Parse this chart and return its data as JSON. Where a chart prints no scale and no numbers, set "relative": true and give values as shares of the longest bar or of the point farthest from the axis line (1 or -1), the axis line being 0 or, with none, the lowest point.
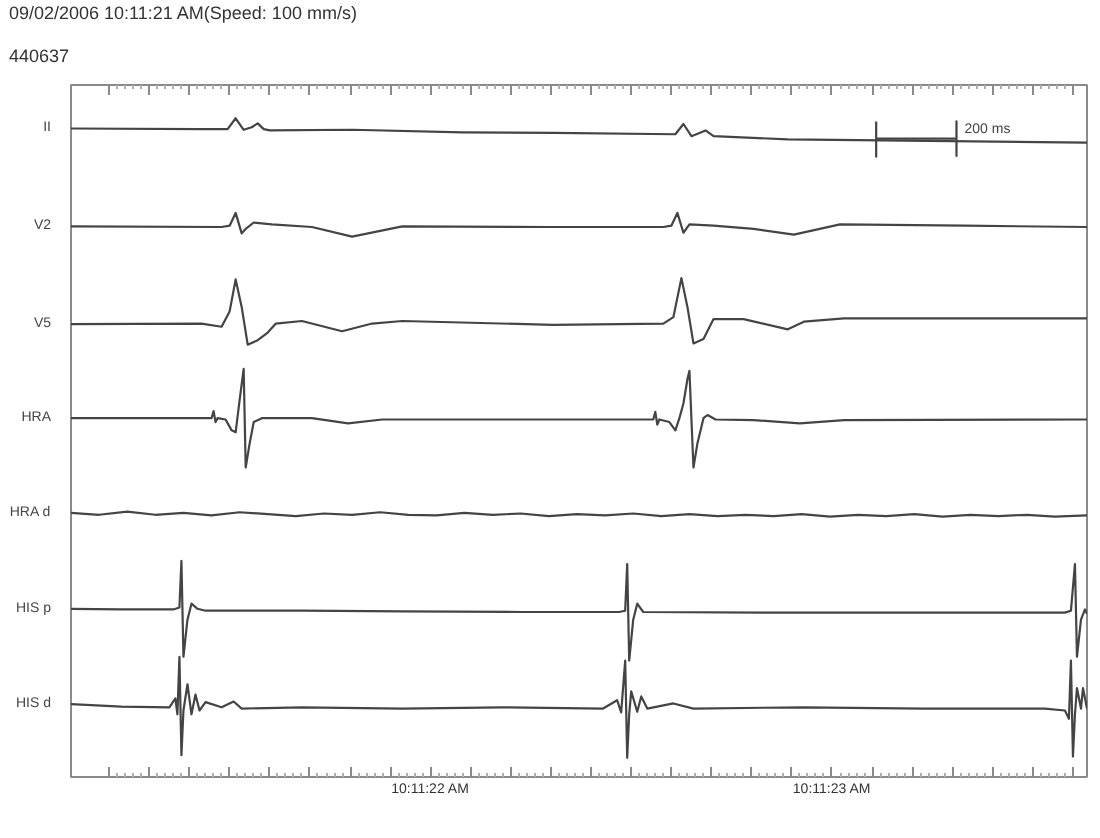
{
  "chart_data": {
    "type": "line",
    "title": "09/02/2006 10:11:21 AM(Speed: 100 mm/s)",
    "subtitle": "440637",
    "relative": true,
    "xlim": [
      "2006-09-02T10:11:21.105",
      "2006-09-02T10:11:23.635"
    ],
    "xticks": [
      {
        "value": "2006-09-02T10:11:21.200",
        "label": null
      },
      {
        "value": "2006-09-02T10:11:21.300",
        "label": null
      },
      {
        "value": "2006-09-02T10:11:21.400",
        "label": null
      },
      {
        "value": "2006-09-02T10:11:21.500",
        "label": null
      },
      {
        "value": "2006-09-02T10:11:21.600",
        "label": null
      },
      {
        "value": "2006-09-02T10:11:21.700",
        "label": null
      },
      {
        "value": "2006-09-02T10:11:21.800",
        "label": null
      },
      {
        "value": "2006-09-02T10:11:21.900",
        "label": null
      },
      {
        "value": "2006-09-02T10:11:22.000",
        "label": "10:11:22 AM"
      },
      {
        "value": "2006-09-02T10:11:22.100",
        "label": null
      },
      {
        "value": "2006-09-02T10:11:22.200",
        "label": null
      },
      {
        "value": "2006-09-02T10:11:22.300",
        "label": null
      },
      {
        "value": "2006-09-02T10:11:22.400",
        "label": null
      },
      {
        "value": "2006-09-02T10:11:22.500",
        "label": null
      },
      {
        "value": "2006-09-02T10:11:22.600",
        "label": null
      },
      {
        "value": "2006-09-02T10:11:22.700",
        "label": null
      },
      {
        "value": "2006-09-02T10:11:22.800",
        "label": null
      },
      {
        "value": "2006-09-02T10:11:22.900",
        "label": null
      },
      {
        "value": "2006-09-02T10:11:23.000",
        "label": "10:11:23 AM"
      },
      {
        "value": "2006-09-02T10:11:23.100",
        "label": null
      },
      {
        "value": "2006-09-02T10:11:23.200",
        "label": null
      },
      {
        "value": "2006-09-02T10:11:23.300",
        "label": null
      },
      {
        "value": "2006-09-02T10:11:23.400",
        "label": null
      },
      {
        "value": "2006-09-02T10:11:23.500",
        "label": null
      },
      {
        "value": "2006-09-02T10:11:23.600",
        "label": null
      }
    ],
    "series": [
      {
        "name": "II",
        "color": "#444444",
        "x": [
          "2006-09-02T10:11:21.105",
          "2006-09-02T10:11:21.430",
          "2006-09-02T10:11:21.495",
          "2006-09-02T10:11:21.515",
          "2006-09-02T10:11:21.535",
          "2006-09-02T10:11:21.555",
          "2006-09-02T10:11:21.570",
          "2006-09-02T10:11:21.585",
          "2006-09-02T10:11:21.600",
          "2006-09-02T10:11:21.805",
          "2006-09-02T10:11:22.080",
          "2006-09-02T10:11:22.305",
          "2006-09-02T10:11:22.610",
          "2006-09-02T10:11:22.630",
          "2006-09-02T10:11:22.650",
          "2006-09-02T10:11:22.670",
          "2006-09-02T10:11:22.685",
          "2006-09-02T10:11:22.705",
          "2006-09-02T10:11:22.890",
          "2006-09-02T10:11:23.180",
          "2006-09-02T10:11:23.635"
        ],
        "values": [
          0.984,
          0.983,
          0.983,
          1.0,
          0.982,
          0.986,
          0.992,
          0.983,
          0.981,
          0.982,
          0.978,
          0.977,
          0.975,
          0.991,
          0.972,
          0.977,
          0.981,
          0.972,
          0.967,
          0.965,
          0.962
        ]
      },
      {
        "name": "V2",
        "color": "#444444",
        "x": [
          "2006-09-02T10:11:21.105",
          "2006-09-02T10:11:21.480",
          "2006-09-02T10:11:21.500",
          "2006-09-02T10:11:21.515",
          "2006-09-02T10:11:21.530",
          "2006-09-02T10:11:21.540",
          "2006-09-02T10:11:21.560",
          "2006-09-02T10:11:21.605",
          "2006-09-02T10:11:21.705",
          "2006-09-02T10:11:21.805",
          "2006-09-02T10:11:21.930",
          "2006-09-02T10:11:22.305",
          "2006-09-02T10:11:22.580",
          "2006-09-02T10:11:22.600",
          "2006-09-02T10:11:22.615",
          "2006-09-02T10:11:22.630",
          "2006-09-02T10:11:22.645",
          "2006-09-02T10:11:22.705",
          "2006-09-02T10:11:22.805",
          "2006-09-02T10:11:22.905",
          "2006-09-02T10:11:23.020",
          "2006-09-02T10:11:23.330",
          "2006-09-02T10:11:23.635"
        ],
        "values": [
          0.831,
          0.83,
          0.832,
          0.852,
          0.82,
          0.827,
          0.837,
          0.834,
          0.83,
          0.815,
          0.831,
          0.83,
          0.83,
          0.832,
          0.852,
          0.821,
          0.834,
          0.832,
          0.827,
          0.818,
          0.834,
          0.832,
          0.83
        ]
      },
      {
        "name": "V5",
        "color": "#444444",
        "x": [
          "2006-09-02T10:11:21.105",
          "2006-09-02T10:11:21.430",
          "2006-09-02T10:11:21.480",
          "2006-09-02T10:11:21.500",
          "2006-09-02T10:11:21.515",
          "2006-09-02T10:11:21.530",
          "2006-09-02T10:11:21.545",
          "2006-09-02T10:11:21.570",
          "2006-09-02T10:11:21.595",
          "2006-09-02T10:11:21.615",
          "2006-09-02T10:11:21.680",
          "2006-09-02T10:11:21.780",
          "2006-09-02T10:11:21.855",
          "2006-09-02T10:11:21.930",
          "2006-09-02T10:11:22.305",
          "2006-09-02T10:11:22.580",
          "2006-09-02T10:11:22.605",
          "2006-09-02T10:11:22.625",
          "2006-09-02T10:11:22.640",
          "2006-09-02T10:11:22.655",
          "2006-09-02T10:11:22.680",
          "2006-09-02T10:11:22.705",
          "2006-09-02T10:11:22.780",
          "2006-09-02T10:11:22.890",
          "2006-09-02T10:11:22.930",
          "2006-09-02T10:11:23.030",
          "2006-09-02T10:11:23.635"
        ],
        "values": [
          0.678,
          0.679,
          0.674,
          0.698,
          0.748,
          0.705,
          0.646,
          0.653,
          0.665,
          0.679,
          0.683,
          0.667,
          0.679,
          0.683,
          0.677,
          0.679,
          0.689,
          0.75,
          0.705,
          0.648,
          0.655,
          0.686,
          0.686,
          0.67,
          0.682,
          0.687,
          0.687
        ]
      },
      {
        "name": "HRA",
        "color": "#444444",
        "x": [
          "2006-09-02T10:11:21.105",
          "2006-09-02T10:11:21.455",
          "2006-09-02T10:11:21.460",
          "2006-09-02T10:11:21.465",
          "2006-09-02T10:11:21.470",
          "2006-09-02T10:11:21.490",
          "2006-09-02T10:11:21.505",
          "2006-09-02T10:11:21.515",
          "2006-09-02T10:11:21.525",
          "2006-09-02T10:11:21.535",
          "2006-09-02T10:11:21.540",
          "2006-09-02T10:11:21.550",
          "2006-09-02T10:11:21.560",
          "2006-09-02T10:11:21.580",
          "2006-09-02T10:11:21.705",
          "2006-09-02T10:11:21.795",
          "2006-09-02T10:11:21.880",
          "2006-09-02T10:11:22.305",
          "2006-09-02T10:11:22.555",
          "2006-09-02T10:11:22.560",
          "2006-09-02T10:11:22.565",
          "2006-09-02T10:11:22.570",
          "2006-09-02T10:11:22.595",
          "2006-09-02T10:11:22.610",
          "2006-09-02T10:11:22.620",
          "2006-09-02T10:11:22.630",
          "2006-09-02T10:11:22.640",
          "2006-09-02T10:11:22.645",
          "2006-09-02T10:11:22.655",
          "2006-09-02T10:11:22.665",
          "2006-09-02T10:11:22.680",
          "2006-09-02T10:11:22.690",
          "2006-09-02T10:11:22.710",
          "2006-09-02T10:11:22.805",
          "2006-09-02T10:11:22.920",
          "2006-09-02T10:11:23.030",
          "2006-09-02T10:11:23.635"
        ],
        "values": [
          0.531,
          0.531,
          0.542,
          0.525,
          0.531,
          0.529,
          0.512,
          0.509,
          0.56,
          0.608,
          0.454,
          0.492,
          0.525,
          0.531,
          0.531,
          0.523,
          0.529,
          0.529,
          0.529,
          0.541,
          0.521,
          0.529,
          0.525,
          0.512,
          0.531,
          0.554,
          0.592,
          0.605,
          0.454,
          0.492,
          0.531,
          0.536,
          0.529,
          0.528,
          0.523,
          0.528,
          0.529
        ]
      },
      {
        "name": "HRA d",
        "color": "#444444",
        "x": [
          "2006-09-02T10:11:21.105",
          "2006-09-02T10:11:21.175",
          "2006-09-02T10:11:21.245",
          "2006-09-02T10:11:21.315",
          "2006-09-02T10:11:21.385",
          "2006-09-02T10:11:21.455",
          "2006-09-02T10:11:21.525",
          "2006-09-02T10:11:21.595",
          "2006-09-02T10:11:21.665",
          "2006-09-02T10:11:21.735",
          "2006-09-02T10:11:21.805",
          "2006-09-02T10:11:21.875",
          "2006-09-02T10:11:21.945",
          "2006-09-02T10:11:22.015",
          "2006-09-02T10:11:22.085",
          "2006-09-02T10:11:22.155",
          "2006-09-02T10:11:22.225",
          "2006-09-02T10:11:22.295",
          "2006-09-02T10:11:22.365",
          "2006-09-02T10:11:22.435",
          "2006-09-02T10:11:22.505",
          "2006-09-02T10:11:22.575",
          "2006-09-02T10:11:22.645",
          "2006-09-02T10:11:22.715",
          "2006-09-02T10:11:22.785",
          "2006-09-02T10:11:22.855",
          "2006-09-02T10:11:22.925",
          "2006-09-02T10:11:22.995",
          "2006-09-02T10:11:23.065",
          "2006-09-02T10:11:23.135",
          "2006-09-02T10:11:23.205",
          "2006-09-02T10:11:23.275",
          "2006-09-02T10:11:23.345",
          "2006-09-02T10:11:23.415",
          "2006-09-02T10:11:23.485",
          "2006-09-02T10:11:23.555",
          "2006-09-02T10:11:23.635"
        ],
        "values": [
          0.383,
          0.38,
          0.385,
          0.38,
          0.383,
          0.379,
          0.384,
          0.381,
          0.378,
          0.382,
          0.38,
          0.384,
          0.38,
          0.379,
          0.383,
          0.38,
          0.382,
          0.378,
          0.381,
          0.379,
          0.382,
          0.378,
          0.381,
          0.378,
          0.38,
          0.378,
          0.381,
          0.377,
          0.38,
          0.378,
          0.381,
          0.377,
          0.38,
          0.378,
          0.38,
          0.377,
          0.379
        ]
      },
      {
        "name": "HIS p",
        "color": "#444444",
        "x": [
          "2006-09-02T10:11:21.105",
          "2006-09-02T10:11:21.230",
          "2006-09-02T10:11:21.360",
          "2006-09-02T10:11:21.375",
          "2006-09-02T10:11:21.380",
          "2006-09-02T10:11:21.385",
          "2006-09-02T10:11:21.395",
          "2006-09-02T10:11:21.405",
          "2006-09-02T10:11:21.420",
          "2006-09-02T10:11:21.440",
          "2006-09-02T10:11:21.680",
          "2006-09-02T10:11:21.930",
          "2006-09-02T10:11:22.230",
          "2006-09-02T10:11:22.470",
          "2006-09-02T10:11:22.485",
          "2006-09-02T10:11:22.490",
          "2006-09-02T10:11:22.495",
          "2006-09-02T10:11:22.505",
          "2006-09-02T10:11:22.515",
          "2006-09-02T10:11:22.530",
          "2006-09-02T10:11:22.830",
          "2006-09-02T10:11:23.180",
          "2006-09-02T10:11:23.580",
          "2006-09-02T10:11:23.595",
          "2006-09-02T10:11:23.605",
          "2006-09-02T10:11:23.610",
          "2006-09-02T10:11:23.620",
          "2006-09-02T10:11:23.630",
          "2006-09-02T10:11:23.635"
        ],
        "values": [
          0.233,
          0.232,
          0.232,
          0.235,
          0.308,
          0.158,
          0.216,
          0.241,
          0.233,
          0.23,
          0.23,
          0.229,
          0.228,
          0.228,
          0.23,
          0.303,
          0.152,
          0.216,
          0.241,
          0.228,
          0.227,
          0.227,
          0.227,
          0.23,
          0.303,
          0.158,
          0.216,
          0.232,
          0.225
        ]
      },
      {
        "name": "HIS d",
        "color": "#444444",
        "x": [
          "2006-09-02T10:11:21.105",
          "2006-09-02T10:11:21.230",
          "2006-09-02T10:11:21.350",
          "2006-09-02T10:11:21.365",
          "2006-09-02T10:11:21.370",
          "2006-09-02T10:11:21.375",
          "2006-09-02T10:11:21.380",
          "2006-09-02T10:11:21.385",
          "2006-09-02T10:11:21.395",
          "2006-09-02T10:11:21.405",
          "2006-09-02T10:11:21.415",
          "2006-09-02T10:11:21.425",
          "2006-09-02T10:11:21.440",
          "2006-09-02T10:11:21.480",
          "2006-09-02T10:11:21.510",
          "2006-09-02T10:11:21.530",
          "2006-09-02T10:11:21.680",
          "2006-09-02T10:11:21.930",
          "2006-09-02T10:11:22.180",
          "2006-09-02T10:11:22.430",
          "2006-09-02T10:11:22.465",
          "2006-09-02T10:11:22.475",
          "2006-09-02T10:11:22.485",
          "2006-09-02T10:11:22.490",
          "2006-09-02T10:11:22.495",
          "2006-09-02T10:11:22.500",
          "2006-09-02T10:11:22.515",
          "2006-09-02T10:11:22.525",
          "2006-09-02T10:11:22.540",
          "2006-09-02T10:11:22.605",
          "2006-09-02T10:11:22.655",
          "2006-09-02T10:11:22.930",
          "2006-09-02T10:11:23.230",
          "2006-09-02T10:11:23.530",
          "2006-09-02T10:11:23.580",
          "2006-09-02T10:11:23.590",
          "2006-09-02T10:11:23.595",
          "2006-09-02T10:11:23.600",
          "2006-09-02T10:11:23.605",
          "2006-09-02T10:11:23.610",
          "2006-09-02T10:11:23.620",
          "2006-09-02T10:11:23.625",
          "2006-09-02T10:11:23.635"
        ],
        "values": [
          0.084,
          0.08,
          0.079,
          0.093,
          0.068,
          0.158,
          0.004,
          0.074,
          0.115,
          0.068,
          0.099,
          0.074,
          0.087,
          0.079,
          0.088,
          0.077,
          0.079,
          0.077,
          0.079,
          0.077,
          0.09,
          0.071,
          0.152,
          0.0,
          0.068,
          0.104,
          0.072,
          0.096,
          0.077,
          0.085,
          0.077,
          0.079,
          0.077,
          0.077,
          0.074,
          0.061,
          0.152,
          0.002,
          0.068,
          0.109,
          0.077,
          0.109,
          0.077
        ]
      },
      {
        "name": "200 ms",
        "color": "#444444",
        "x": [
          "2006-09-02T10:11:23.110",
          "2006-09-02T10:11:23.110",
          "2006-09-02T10:11:23.110",
          "2006-09-02T10:11:23.310",
          "2006-09-02T10:11:23.310",
          "2006-09-02T10:11:23.310"
        ],
        "values": [
          0.995,
          0.94,
          0.968,
          0.968,
          0.995,
          0.94
        ]
      }
    ]
  }
}
